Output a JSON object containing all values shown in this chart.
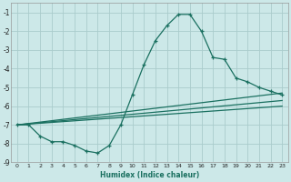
{
  "xlabel": "Humidex (Indice chaleur)",
  "ylabel": "",
  "bg_color": "#cce8e8",
  "grid_color": "#aacccc",
  "line_color": "#1a7060",
  "xlim": [
    -0.5,
    23.5
  ],
  "ylim": [
    -9.0,
    -0.5
  ],
  "xticks": [
    0,
    1,
    2,
    3,
    4,
    5,
    6,
    7,
    8,
    9,
    10,
    11,
    12,
    13,
    14,
    15,
    16,
    17,
    18,
    19,
    20,
    21,
    22,
    23
  ],
  "yticks": [
    -1,
    -2,
    -3,
    -4,
    -5,
    -6,
    -7,
    -8,
    -9
  ],
  "curve_x": [
    0,
    1,
    2,
    3,
    4,
    5,
    6,
    7,
    8,
    9,
    10,
    11,
    12,
    13,
    14,
    15,
    16,
    17,
    18,
    19,
    20,
    21,
    22,
    23
  ],
  "curve_y": [
    -7.0,
    -7.0,
    -7.6,
    -7.9,
    -7.9,
    -8.1,
    -8.4,
    -8.5,
    -8.1,
    -7.0,
    -5.4,
    -3.8,
    -2.5,
    -1.7,
    -1.1,
    -1.1,
    -2.0,
    -3.4,
    -3.5,
    -4.5,
    -4.7,
    -5.0,
    -5.2,
    -5.4
  ],
  "line1_x": [
    0,
    23
  ],
  "line1_y": [
    -7.0,
    -5.3
  ],
  "line2_x": [
    0,
    23
  ],
  "line2_y": [
    -7.0,
    -5.7
  ],
  "line3_x": [
    0,
    23
  ],
  "line3_y": [
    -7.0,
    -6.0
  ],
  "xticklabels": [
    "0",
    "1",
    "2",
    "3",
    "4",
    "5",
    "6",
    "7",
    "8",
    "9",
    "10",
    "11",
    "12",
    "13",
    "14",
    "15",
    "16",
    "17",
    "18",
    "19",
    "20",
    "21",
    "22",
    "23"
  ]
}
